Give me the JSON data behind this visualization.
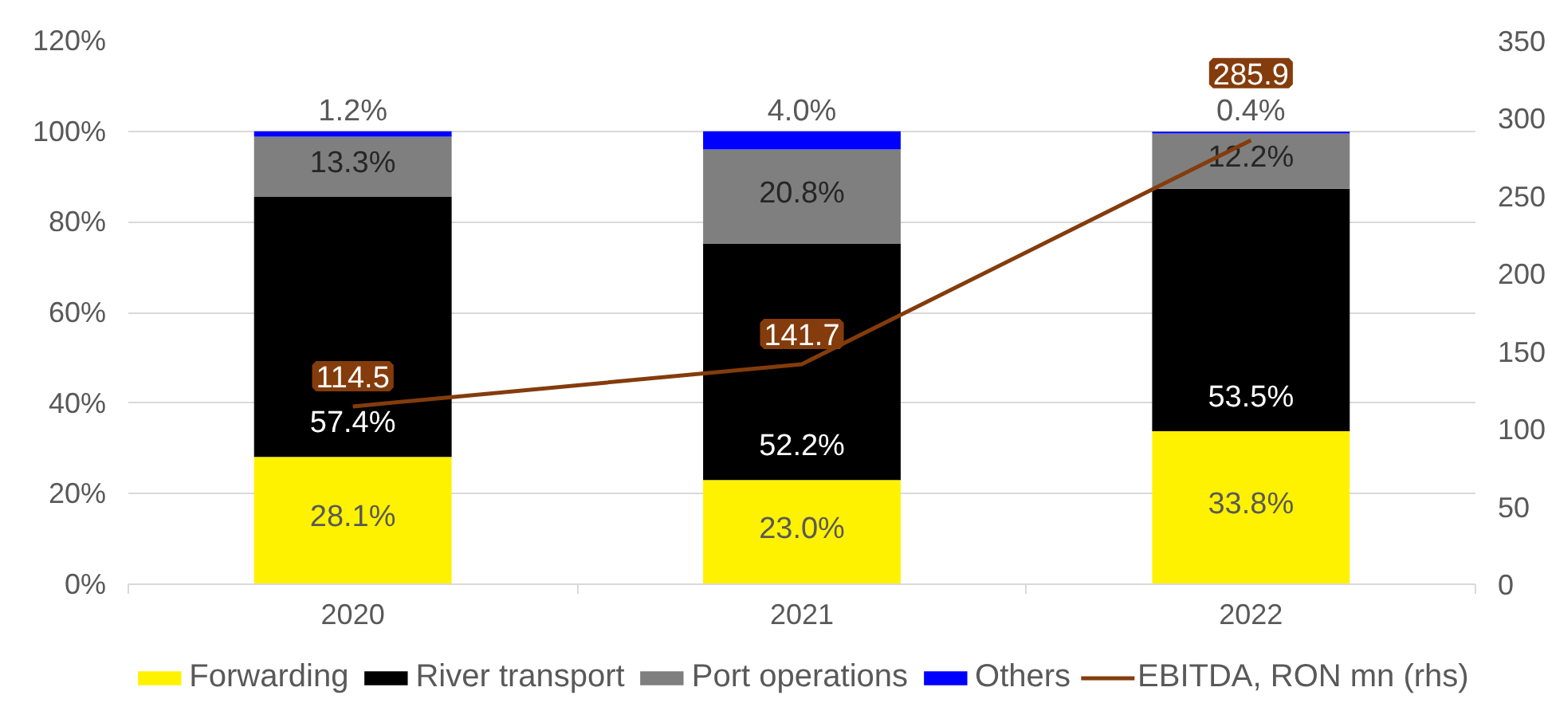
{
  "chart_data": {
    "type": "bar",
    "stacked": true,
    "categories": [
      "2020",
      "2021",
      "2022"
    ],
    "series": [
      {
        "name": "Forwarding",
        "color": "#fff200",
        "values": [
          28.1,
          23.0,
          33.8
        ],
        "value_labels": [
          "28.1%",
          "23.0%",
          "33.8%"
        ]
      },
      {
        "name": "River transport",
        "color": "#000000",
        "values": [
          57.4,
          52.2,
          53.5
        ],
        "value_labels": [
          "57.4%",
          "52.2%",
          "53.5%"
        ]
      },
      {
        "name": "Port operations",
        "color": "#7f7f7f",
        "values": [
          13.3,
          20.8,
          12.2
        ],
        "value_labels": [
          "13.3%",
          "20.8%",
          "12.2%"
        ]
      },
      {
        "name": "Others",
        "color": "#0000ff",
        "values": [
          1.2,
          4.0,
          0.4
        ],
        "value_labels": [
          "1.2%",
          "4.0%",
          "0.4%"
        ]
      },
      {
        "name": "EBITDA, RON mn (rhs)",
        "type": "line",
        "axis": "y2",
        "color": "#843c0c",
        "values": [
          114.5,
          141.7,
          285.9
        ],
        "value_labels": [
          "114.5",
          "141.7",
          "285.9"
        ]
      }
    ],
    "ylim": [
      0,
      120
    ],
    "yticks": [
      {
        "value": 0,
        "label": "0%"
      },
      {
        "value": 20,
        "label": "20%"
      },
      {
        "value": 40,
        "label": "40%"
      },
      {
        "value": 60,
        "label": "60%"
      },
      {
        "value": 80,
        "label": "80%"
      },
      {
        "value": 100,
        "label": "100%"
      },
      {
        "value": 120,
        "label": "120%"
      }
    ],
    "y2lim": [
      0,
      350
    ],
    "y2ticks": [
      0,
      50,
      100,
      150,
      200,
      250,
      300,
      350
    ],
    "grid": "y",
    "legend": "bottom"
  }
}
